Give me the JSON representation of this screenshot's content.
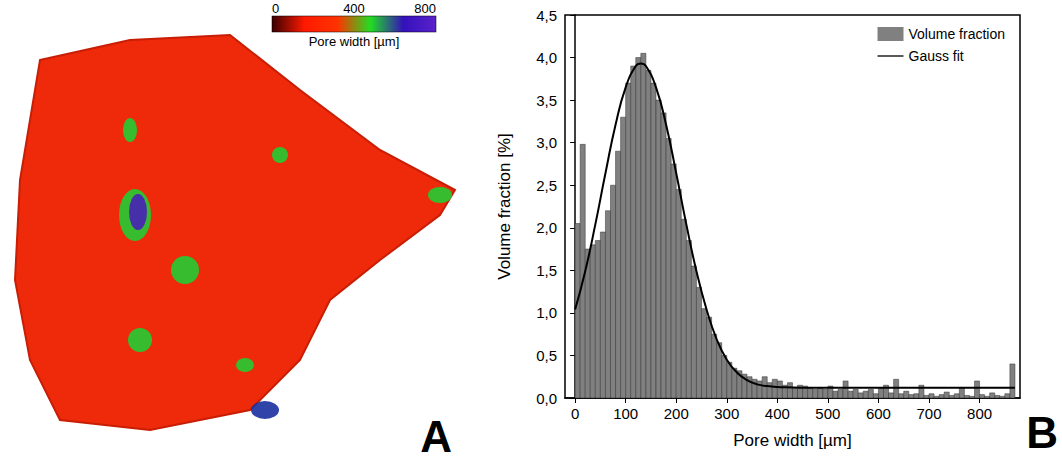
{
  "panel_a": {
    "label": "A",
    "colorbar": {
      "title": "Pore width [µm]",
      "range": [
        0,
        800
      ],
      "ticks": [
        0,
        400,
        800
      ],
      "colors": [
        "#3a0000",
        "#ff1a00",
        "#ff3300",
        "#22dd22",
        "#3311bb",
        "#5a22cc"
      ]
    }
  },
  "chart_data": {
    "label": "B",
    "type": "histogram",
    "xlabel": "Pore width [µm]",
    "ylabel": "Volume fraction [%]",
    "xlim": [
      -20,
      880
    ],
    "xticks": [
      0,
      100,
      200,
      300,
      400,
      500,
      600,
      700,
      800
    ],
    "ylim": [
      0,
      4.5
    ],
    "yticks": [
      {
        "value": 0,
        "label": "0,0"
      },
      {
        "value": 0.5,
        "label": "0,5"
      },
      {
        "value": 1,
        "label": "1,0"
      },
      {
        "value": 1.5,
        "label": "1,5"
      },
      {
        "value": 2,
        "label": "2,0"
      },
      {
        "value": 2.5,
        "label": "2,5"
      },
      {
        "value": 3,
        "label": "3,0"
      },
      {
        "value": 3.5,
        "label": "3,5"
      },
      {
        "value": 4,
        "label": "4,0"
      },
      {
        "value": 4.5,
        "label": "4,5"
      }
    ],
    "legend": "top-right",
    "grid": false,
    "bins": [
      0,
      10,
      20,
      30,
      40,
      50,
      60,
      70,
      80,
      90,
      100,
      110,
      120,
      130,
      140,
      150,
      160,
      170,
      180,
      190,
      200,
      210,
      220,
      230,
      240,
      250,
      260,
      270,
      280,
      290,
      300,
      310,
      320,
      330,
      340,
      350,
      360,
      370,
      380,
      390,
      400,
      410,
      420,
      430,
      440,
      450,
      460,
      470,
      480,
      490,
      500,
      510,
      520,
      530,
      540,
      550,
      560,
      570,
      580,
      590,
      600,
      610,
      620,
      630,
      640,
      650,
      660,
      670,
      680,
      690,
      700,
      710,
      720,
      730,
      740,
      750,
      760,
      770,
      780,
      790,
      800,
      810,
      820,
      830,
      840,
      850,
      860,
      870
    ],
    "series": [
      {
        "name": "Volume fraction",
        "type": "bar",
        "color": "#808080",
        "values": [
          2.05,
          2.98,
          1.75,
          1.8,
          1.85,
          1.95,
          2.2,
          2.5,
          2.9,
          3.3,
          3.7,
          3.9,
          4.0,
          4.05,
          3.85,
          3.7,
          3.5,
          3.35,
          3.05,
          2.75,
          2.45,
          2.1,
          1.85,
          1.55,
          1.3,
          1.05,
          0.95,
          0.75,
          0.65,
          0.5,
          0.42,
          0.35,
          0.32,
          0.28,
          0.25,
          0.22,
          0.2,
          0.25,
          0.18,
          0.22,
          0.2,
          0.15,
          0.18,
          0.12,
          0.15,
          0.14,
          0.12,
          0.1,
          0.12,
          0.1,
          0.14,
          0.08,
          0.1,
          0.2,
          0.08,
          0.1,
          0.06,
          0.08,
          0.1,
          0.05,
          0.12,
          0.15,
          0.06,
          0.22,
          0.05,
          0.08,
          0.04,
          0.05,
          0.15,
          0.03,
          0.05,
          0.02,
          0.04,
          0.07,
          0.03,
          0.05,
          0.12,
          0.03,
          0.02,
          0.2,
          0.04,
          0.02,
          0.06,
          0.03,
          0.02,
          0.05,
          0.4
        ]
      },
      {
        "name": "Gauss fit",
        "type": "line",
        "color": "#000000",
        "x": [
          0,
          20,
          40,
          60,
          80,
          100,
          120,
          130,
          140,
          160,
          180,
          200,
          220,
          240,
          260,
          280,
          300,
          320,
          340,
          360,
          380,
          400,
          450,
          500,
          600,
          700,
          800,
          870
        ],
        "values": [
          1.04,
          1.49,
          2.04,
          2.64,
          3.21,
          3.65,
          3.9,
          3.93,
          3.9,
          3.65,
          3.21,
          2.64,
          2.04,
          1.49,
          1.04,
          0.69,
          0.45,
          0.3,
          0.21,
          0.16,
          0.14,
          0.13,
          0.12,
          0.12,
          0.12,
          0.12,
          0.12,
          0.12
        ]
      }
    ]
  }
}
